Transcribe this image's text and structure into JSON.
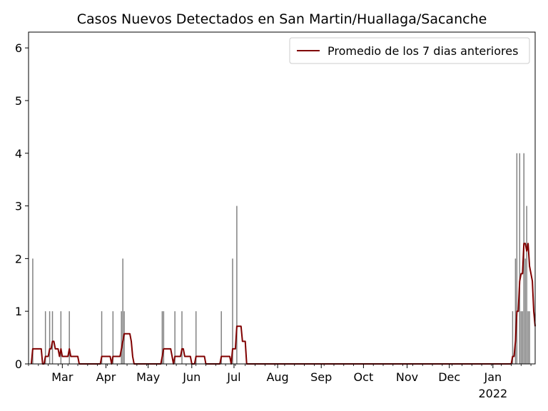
{
  "chart_data": {
    "type": "bar",
    "title": "Casos Nuevos Detectados en San Martin/Huallaga/Sacanche",
    "xlabel": "",
    "ylabel": "",
    "ylim": [
      0,
      6.3
    ],
    "yticks": [
      0,
      1,
      2,
      3,
      4,
      5,
      6
    ],
    "x_start": "2021-02-05",
    "x_end": "2022-01-31",
    "xticks": [
      {
        "date": "2021-03-01",
        "label": "Mar",
        "sublabel": ""
      },
      {
        "date": "2021-04-01",
        "label": "Apr",
        "sublabel": ""
      },
      {
        "date": "2021-05-01",
        "label": "May",
        "sublabel": ""
      },
      {
        "date": "2021-06-01",
        "label": "Jun",
        "sublabel": ""
      },
      {
        "date": "2021-07-01",
        "label": "Jul",
        "sublabel": ""
      },
      {
        "date": "2021-08-01",
        "label": "Aug",
        "sublabel": ""
      },
      {
        "date": "2021-09-01",
        "label": "Sep",
        "sublabel": ""
      },
      {
        "date": "2021-10-01",
        "label": "Oct",
        "sublabel": ""
      },
      {
        "date": "2021-11-01",
        "label": "Nov",
        "sublabel": ""
      },
      {
        "date": "2021-12-01",
        "label": "Dec",
        "sublabel": ""
      },
      {
        "date": "2022-01-01",
        "label": "Jan",
        "sublabel": "2022"
      }
    ],
    "bar_series": {
      "color": "#808080",
      "points": [
        {
          "date": "2021-02-08",
          "value": 2
        },
        {
          "date": "2021-02-17",
          "value": 1
        },
        {
          "date": "2021-02-20",
          "value": 1
        },
        {
          "date": "2021-02-22",
          "value": 1
        },
        {
          "date": "2021-02-28",
          "value": 1
        },
        {
          "date": "2021-03-06",
          "value": 1
        },
        {
          "date": "2021-03-29",
          "value": 1
        },
        {
          "date": "2021-04-06",
          "value": 1
        },
        {
          "date": "2021-04-12",
          "value": 1
        },
        {
          "date": "2021-04-13",
          "value": 2
        },
        {
          "date": "2021-04-14",
          "value": 1
        },
        {
          "date": "2021-05-11",
          "value": 1
        },
        {
          "date": "2021-05-12",
          "value": 1
        },
        {
          "date": "2021-05-20",
          "value": 1
        },
        {
          "date": "2021-05-25",
          "value": 1
        },
        {
          "date": "2021-06-04",
          "value": 1
        },
        {
          "date": "2021-06-22",
          "value": 1
        },
        {
          "date": "2021-06-30",
          "value": 2
        },
        {
          "date": "2021-07-03",
          "value": 3
        },
        {
          "date": "2022-01-15",
          "value": 1
        },
        {
          "date": "2022-01-17",
          "value": 2
        },
        {
          "date": "2022-01-18",
          "value": 4
        },
        {
          "date": "2022-01-20",
          "value": 4
        },
        {
          "date": "2022-01-21",
          "value": 1
        },
        {
          "date": "2022-01-22",
          "value": 1
        },
        {
          "date": "2022-01-23",
          "value": 4
        },
        {
          "date": "2022-01-24",
          "value": 2
        },
        {
          "date": "2022-01-25",
          "value": 3
        },
        {
          "date": "2022-01-26",
          "value": 1
        },
        {
          "date": "2022-01-27",
          "value": 1
        }
      ]
    },
    "line_series": {
      "name": "Promedio de los 7 dias anteriores",
      "color": "#800000"
    },
    "legend_location": "top-right",
    "grid": false
  }
}
